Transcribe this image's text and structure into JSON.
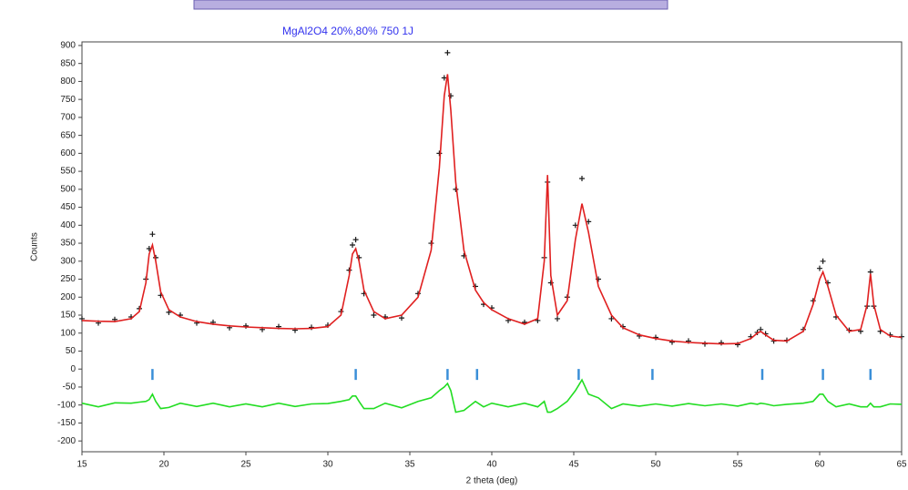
{
  "chart_data": {
    "type": "line",
    "title": "MgAl2O4 20%,80% 750 1J",
    "x_label": "2 theta (deg)",
    "y_label": "Counts",
    "xlim": [
      15,
      65
    ],
    "xticks": [
      15,
      20,
      25,
      30,
      35,
      40,
      45,
      50,
      55,
      60,
      65
    ],
    "ylim": [
      -230,
      910
    ],
    "yticks": [
      -200,
      -150,
      -100,
      -50,
      0,
      50,
      100,
      150,
      200,
      250,
      300,
      350,
      400,
      450,
      500,
      550,
      600,
      650,
      700,
      750,
      800,
      850,
      900
    ],
    "x": [
      15,
      16,
      17,
      18,
      18.5,
      18.9,
      19.1,
      19.3,
      19.5,
      19.8,
      20.3,
      21,
      22,
      23,
      24,
      25,
      26,
      27,
      28,
      29,
      30,
      30.8,
      31.3,
      31.5,
      31.7,
      31.9,
      32.2,
      32.8,
      33.5,
      34.5,
      35.5,
      36.3,
      36.8,
      37.1,
      37.3,
      37.5,
      37.8,
      38.3,
      39,
      39.5,
      40,
      41,
      42,
      42.8,
      43.2,
      43.4,
      43.6,
      44,
      44.6,
      45.1,
      45.5,
      45.9,
      46.5,
      47.3,
      48,
      49,
      50,
      51,
      52,
      53,
      54,
      55,
      55.8,
      56.2,
      56.4,
      56.7,
      57.2,
      58,
      59,
      59.6,
      60,
      60.2,
      60.5,
      61,
      61.8,
      62.5,
      62.9,
      63.1,
      63.3,
      63.7,
      64.3,
      65
    ],
    "observed": {
      "color": "#1a1a1a",
      "values": [
        140,
        128,
        138,
        145,
        168,
        250,
        335,
        375,
        310,
        205,
        158,
        150,
        128,
        130,
        115,
        120,
        110,
        118,
        108,
        116,
        122,
        160,
        275,
        345,
        360,
        310,
        210,
        150,
        145,
        142,
        210,
        350,
        600,
        810,
        880,
        760,
        500,
        315,
        230,
        180,
        170,
        135,
        130,
        135,
        310,
        520,
        240,
        140,
        200,
        400,
        530,
        410,
        250,
        140,
        118,
        92,
        88,
        75,
        78,
        70,
        73,
        68,
        90,
        102,
        110,
        98,
        78,
        80,
        110,
        190,
        280,
        300,
        240,
        145,
        108,
        105,
        175,
        270,
        175,
        105,
        95,
        90
      ]
    },
    "calculated": {
      "color": "#e02020",
      "values": [
        135,
        133,
        132,
        140,
        160,
        240,
        320,
        345,
        300,
        215,
        165,
        145,
        132,
        125,
        120,
        117,
        115,
        113,
        112,
        113,
        118,
        150,
        260,
        320,
        335,
        300,
        220,
        160,
        140,
        150,
        200,
        330,
        560,
        760,
        820,
        720,
        520,
        330,
        220,
        185,
        165,
        140,
        125,
        140,
        300,
        540,
        260,
        150,
        190,
        360,
        460,
        380,
        230,
        150,
        115,
        95,
        85,
        78,
        74,
        72,
        70,
        71,
        85,
        100,
        105,
        95,
        80,
        78,
        105,
        180,
        250,
        270,
        230,
        150,
        105,
        110,
        180,
        265,
        180,
        110,
        92,
        88
      ]
    },
    "difference": {
      "color": "#22dd22",
      "values": [
        -95,
        -105,
        -94,
        -95,
        -92,
        -90,
        -85,
        -70,
        -90,
        -110,
        -107,
        -95,
        -104,
        -95,
        -105,
        -97,
        -105,
        -95,
        -104,
        -97,
        -96,
        -90,
        -85,
        -75,
        -75,
        -90,
        -110,
        -110,
        -95,
        -108,
        -90,
        -80,
        -60,
        -50,
        -40,
        -60,
        -120,
        -115,
        -90,
        -105,
        -95,
        -105,
        -95,
        -105,
        -90,
        -120,
        -120,
        -110,
        -90,
        -60,
        -30,
        -70,
        -80,
        -110,
        -97,
        -103,
        -97,
        -103,
        -96,
        -102,
        -97,
        -103,
        -95,
        -98,
        -95,
        -97,
        -102,
        -98,
        -95,
        -90,
        -70,
        -70,
        -90,
        -105,
        -97,
        -105,
        -105,
        -95,
        -105,
        -105,
        -97,
        -98
      ]
    },
    "reflections": {
      "color": "#3a8fd8",
      "x": [
        19.3,
        31.7,
        37.3,
        39.1,
        45.3,
        49.8,
        56.5,
        60.2,
        63.1
      ],
      "values": [
        -15,
        -15,
        -15,
        -15,
        -15,
        -15,
        -15,
        -15,
        -15
      ]
    }
  }
}
